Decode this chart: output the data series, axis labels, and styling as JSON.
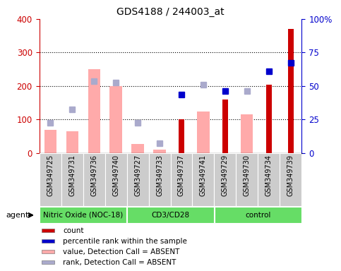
{
  "title": "GDS4188 / 244003_at",
  "samples": [
    "GSM349725",
    "GSM349731",
    "GSM349736",
    "GSM349740",
    "GSM349727",
    "GSM349733",
    "GSM349737",
    "GSM349741",
    "GSM349729",
    "GSM349730",
    "GSM349734",
    "GSM349739"
  ],
  "group_boundaries": [
    0,
    4,
    8,
    12
  ],
  "group_names": [
    "Nitric Oxide (NOC-18)",
    "CD3/CD28",
    "control"
  ],
  "group_color": "#66dd66",
  "count_values": [
    null,
    null,
    null,
    null,
    null,
    null,
    100,
    null,
    160,
    null,
    205,
    370
  ],
  "count_color": "#cc0000",
  "absent_value_bars": [
    70,
    65,
    250,
    200,
    28,
    10,
    null,
    125,
    null,
    115,
    null,
    null
  ],
  "absent_value_color": "#ffaaaa",
  "absent_rank_dots": [
    90,
    130,
    215,
    210,
    90,
    30,
    null,
    205,
    null,
    185,
    null,
    null
  ],
  "absent_rank_color": "#aaaacc",
  "percentile_rank_dots": [
    null,
    null,
    null,
    null,
    null,
    null,
    175,
    null,
    185,
    null,
    245,
    270
  ],
  "percentile_rank_color": "#0000cc",
  "ylim": [
    0,
    400
  ],
  "yticks_left": [
    0,
    100,
    200,
    300,
    400
  ],
  "yticks_right": [
    0,
    25,
    50,
    75,
    100
  ],
  "left_tick_color": "#cc0000",
  "right_tick_color": "#0000cc",
  "legend_items": [
    {
      "label": "count",
      "color": "#cc0000"
    },
    {
      "label": "percentile rank within the sample",
      "color": "#0000cc"
    },
    {
      "label": "value, Detection Call = ABSENT",
      "color": "#ffaaaa"
    },
    {
      "label": "rank, Detection Call = ABSENT",
      "color": "#aaaacc"
    }
  ]
}
